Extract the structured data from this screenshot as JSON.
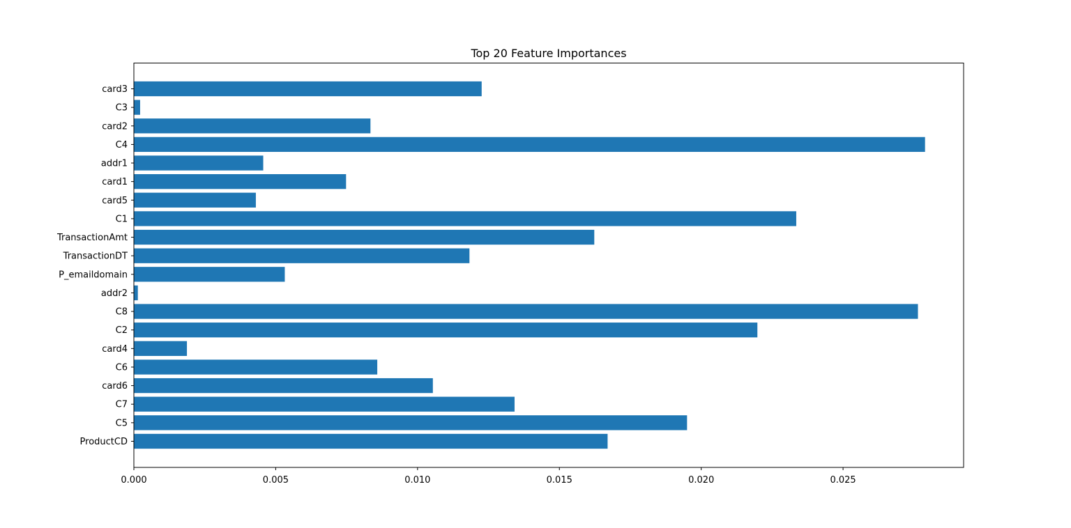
{
  "chart_data": {
    "type": "bar",
    "orientation": "horizontal",
    "title": "Top 20 Feature Importances",
    "xlabel": "",
    "ylabel": "",
    "xlim": [
      0,
      0.02925
    ],
    "grid": false,
    "legend": "none",
    "bar_color": "#1f77b4",
    "x_ticks": [
      {
        "value": 0.0,
        "label": "0.000"
      },
      {
        "value": 0.005,
        "label": "0.005"
      },
      {
        "value": 0.01,
        "label": "0.010"
      },
      {
        "value": 0.015,
        "label": "0.015"
      },
      {
        "value": 0.02,
        "label": "0.020"
      },
      {
        "value": 0.025,
        "label": "0.025"
      }
    ],
    "categories": [
      "ProductCD",
      "C5",
      "C7",
      "card6",
      "C6",
      "card4",
      "C2",
      "C8",
      "addr2",
      "P_emaildomain",
      "TransactionDT",
      "TransactionAmt",
      "C1",
      "card5",
      "card1",
      "addr1",
      "C4",
      "card2",
      "C3",
      "card3"
    ],
    "values": [
      0.0167,
      0.0195,
      0.01342,
      0.01054,
      0.00858,
      0.00187,
      0.02198,
      0.02764,
      0.00014,
      0.00532,
      0.01183,
      0.01623,
      0.02335,
      0.0043,
      0.00748,
      0.00456,
      0.02789,
      0.00834,
      0.00022,
      0.01226
    ]
  }
}
